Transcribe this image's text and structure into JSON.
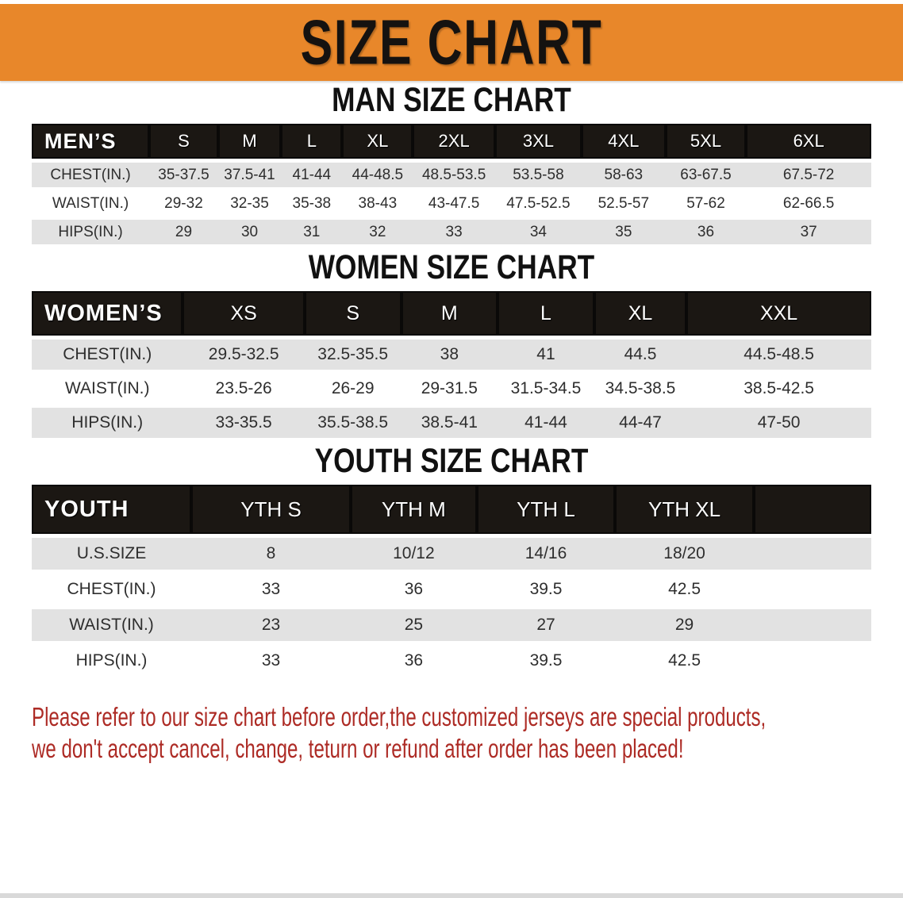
{
  "banner": {
    "title": "SIZE CHART"
  },
  "tables": {
    "mens": {
      "heading": "MAN SIZE CHART",
      "header": [
        "MEN’S",
        "S",
        "M",
        "L",
        "XL",
        "2XL",
        "3XL",
        "4XL",
        "5XL",
        "6XL"
      ],
      "rows": [
        {
          "label": "CHEST(IN.)",
          "values": [
            "35-37.5",
            "37.5-41",
            "41-44",
            "44-48.5",
            "48.5-53.5",
            "53.5-58",
            "58-63",
            "63-67.5",
            "67.5-72"
          ]
        },
        {
          "label": "WAIST(IN.)",
          "values": [
            "29-32",
            "32-35",
            "35-38",
            "38-43",
            "43-47.5",
            "47.5-52.5",
            "52.5-57",
            "57-62",
            "62-66.5"
          ]
        },
        {
          "label": "HIPS(IN.)",
          "values": [
            "29",
            "30",
            "31",
            "32",
            "33",
            "34",
            "35",
            "36",
            "37"
          ]
        }
      ]
    },
    "womens": {
      "heading": "WOMEN SIZE CHART",
      "header": [
        "WOMEN’S",
        "XS",
        "S",
        "M",
        "L",
        "XL",
        "XXL"
      ],
      "rows": [
        {
          "label": "CHEST(IN.)",
          "values": [
            "29.5-32.5",
            "32.5-35.5",
            "38",
            "41",
            "44.5",
            "44.5-48.5"
          ]
        },
        {
          "label": "WAIST(IN.)",
          "values": [
            "23.5-26",
            "26-29",
            "29-31.5",
            "31.5-34.5",
            "34.5-38.5",
            "38.5-42.5"
          ]
        },
        {
          "label": "HIPS(IN.)",
          "values": [
            "33-35.5",
            "35.5-38.5",
            "38.5-41",
            "41-44",
            "44-47",
            "47-50"
          ]
        }
      ]
    },
    "youth": {
      "heading": "YOUTH SIZE CHART",
      "header": [
        "YOUTH",
        "YTH S",
        "YTH M",
        "YTH L",
        "YTH XL"
      ],
      "rows": [
        {
          "label": "U.S.SIZE",
          "values": [
            "8",
            "10/12",
            "14/16",
            "18/20"
          ]
        },
        {
          "label": "CHEST(IN.)",
          "values": [
            "33",
            "36",
            "39.5",
            "42.5"
          ]
        },
        {
          "label": "WAIST(IN.)",
          "values": [
            "23",
            "25",
            "27",
            "29"
          ]
        },
        {
          "label": "HIPS(IN.)",
          "values": [
            "33",
            "36",
            "39.5",
            "42.5"
          ]
        }
      ]
    }
  },
  "disclaimer": {
    "line1": "Please refer to our size chart before order,the customized jerseys are special products,",
    "line2": "we don't accept cancel, change, teturn or refund after order has been placed!"
  },
  "colors": {
    "banner_orange": "#E8872A",
    "table_header_black": "#1B1713",
    "row_gray": "#E2E2E2",
    "disclaimer_red": "#AD2B25"
  }
}
